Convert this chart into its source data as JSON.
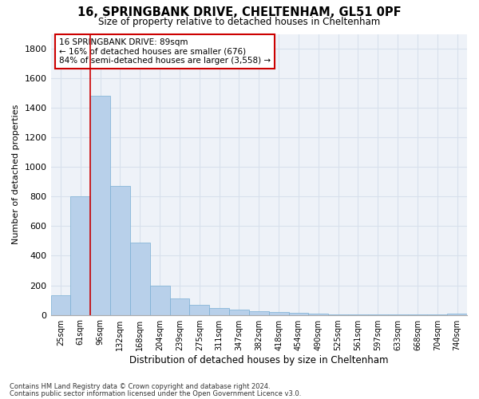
{
  "title": "16, SPRINGBANK DRIVE, CHELTENHAM, GL51 0PF",
  "subtitle": "Size of property relative to detached houses in Cheltenham",
  "xlabel": "Distribution of detached houses by size in Cheltenham",
  "ylabel": "Number of detached properties",
  "bar_color": "#b8d0ea",
  "bar_edge_color": "#7aafd4",
  "background_color": "#eef2f8",
  "grid_color": "#d8e0ec",
  "categories": [
    "25sqm",
    "61sqm",
    "96sqm",
    "132sqm",
    "168sqm",
    "204sqm",
    "239sqm",
    "275sqm",
    "311sqm",
    "347sqm",
    "382sqm",
    "418sqm",
    "454sqm",
    "490sqm",
    "525sqm",
    "561sqm",
    "597sqm",
    "633sqm",
    "668sqm",
    "704sqm",
    "740sqm"
  ],
  "values": [
    130,
    800,
    1480,
    870,
    490,
    200,
    110,
    70,
    45,
    35,
    25,
    20,
    15,
    8,
    5,
    3,
    2,
    1,
    1,
    1,
    10
  ],
  "ylim": [
    0,
    1900
  ],
  "yticks": [
    0,
    200,
    400,
    600,
    800,
    1000,
    1200,
    1400,
    1600,
    1800
  ],
  "vline_x_index": 1.5,
  "vline_color": "#cc0000",
  "annotation_text": "16 SPRINGBANK DRIVE: 89sqm\n← 16% of detached houses are smaller (676)\n84% of semi-detached houses are larger (3,558) →",
  "annotation_box_color": "#cc0000",
  "footnote1": "Contains HM Land Registry data © Crown copyright and database right 2024.",
  "footnote2": "Contains public sector information licensed under the Open Government Licence v3.0."
}
